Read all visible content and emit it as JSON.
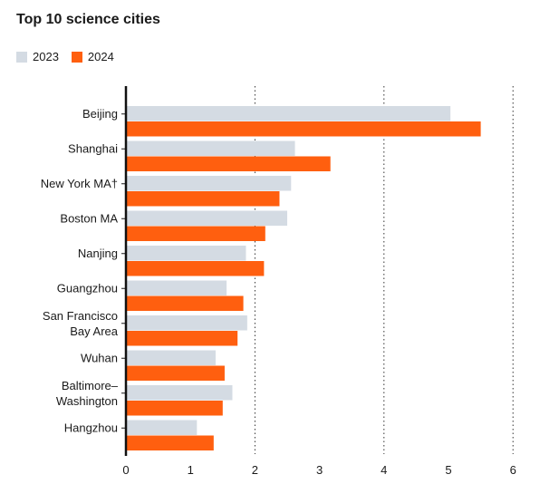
{
  "chart_data": {
    "type": "bar",
    "orientation": "horizontal",
    "title": "Top 10 science cities",
    "categories": [
      [
        "Beijing"
      ],
      [
        "Shanghai"
      ],
      [
        "New York MA†"
      ],
      [
        "Boston MA"
      ],
      [
        "Nanjing"
      ],
      [
        "Guangzhou"
      ],
      [
        "San Francisco",
        "Bay Area"
      ],
      [
        "Wuhan"
      ],
      [
        "Baltimore–",
        "Washington"
      ],
      [
        "Hangzhou"
      ]
    ],
    "series": [
      {
        "name": "2023",
        "color": "#d4dbe3",
        "values": [
          5.03,
          2.62,
          2.56,
          2.5,
          1.86,
          1.56,
          1.88,
          1.39,
          1.65,
          1.1
        ]
      },
      {
        "name": "2024",
        "color": "#ff5f0f",
        "values": [
          5.5,
          3.17,
          2.38,
          2.16,
          2.14,
          1.82,
          1.73,
          1.53,
          1.5,
          1.36
        ]
      }
    ],
    "xlim": [
      0,
      6
    ],
    "xticks": [
      "0",
      "1",
      "2",
      "3",
      "4",
      "5",
      "6"
    ],
    "grid": "dotted vertical at major ticks",
    "legend": "top-left"
  }
}
